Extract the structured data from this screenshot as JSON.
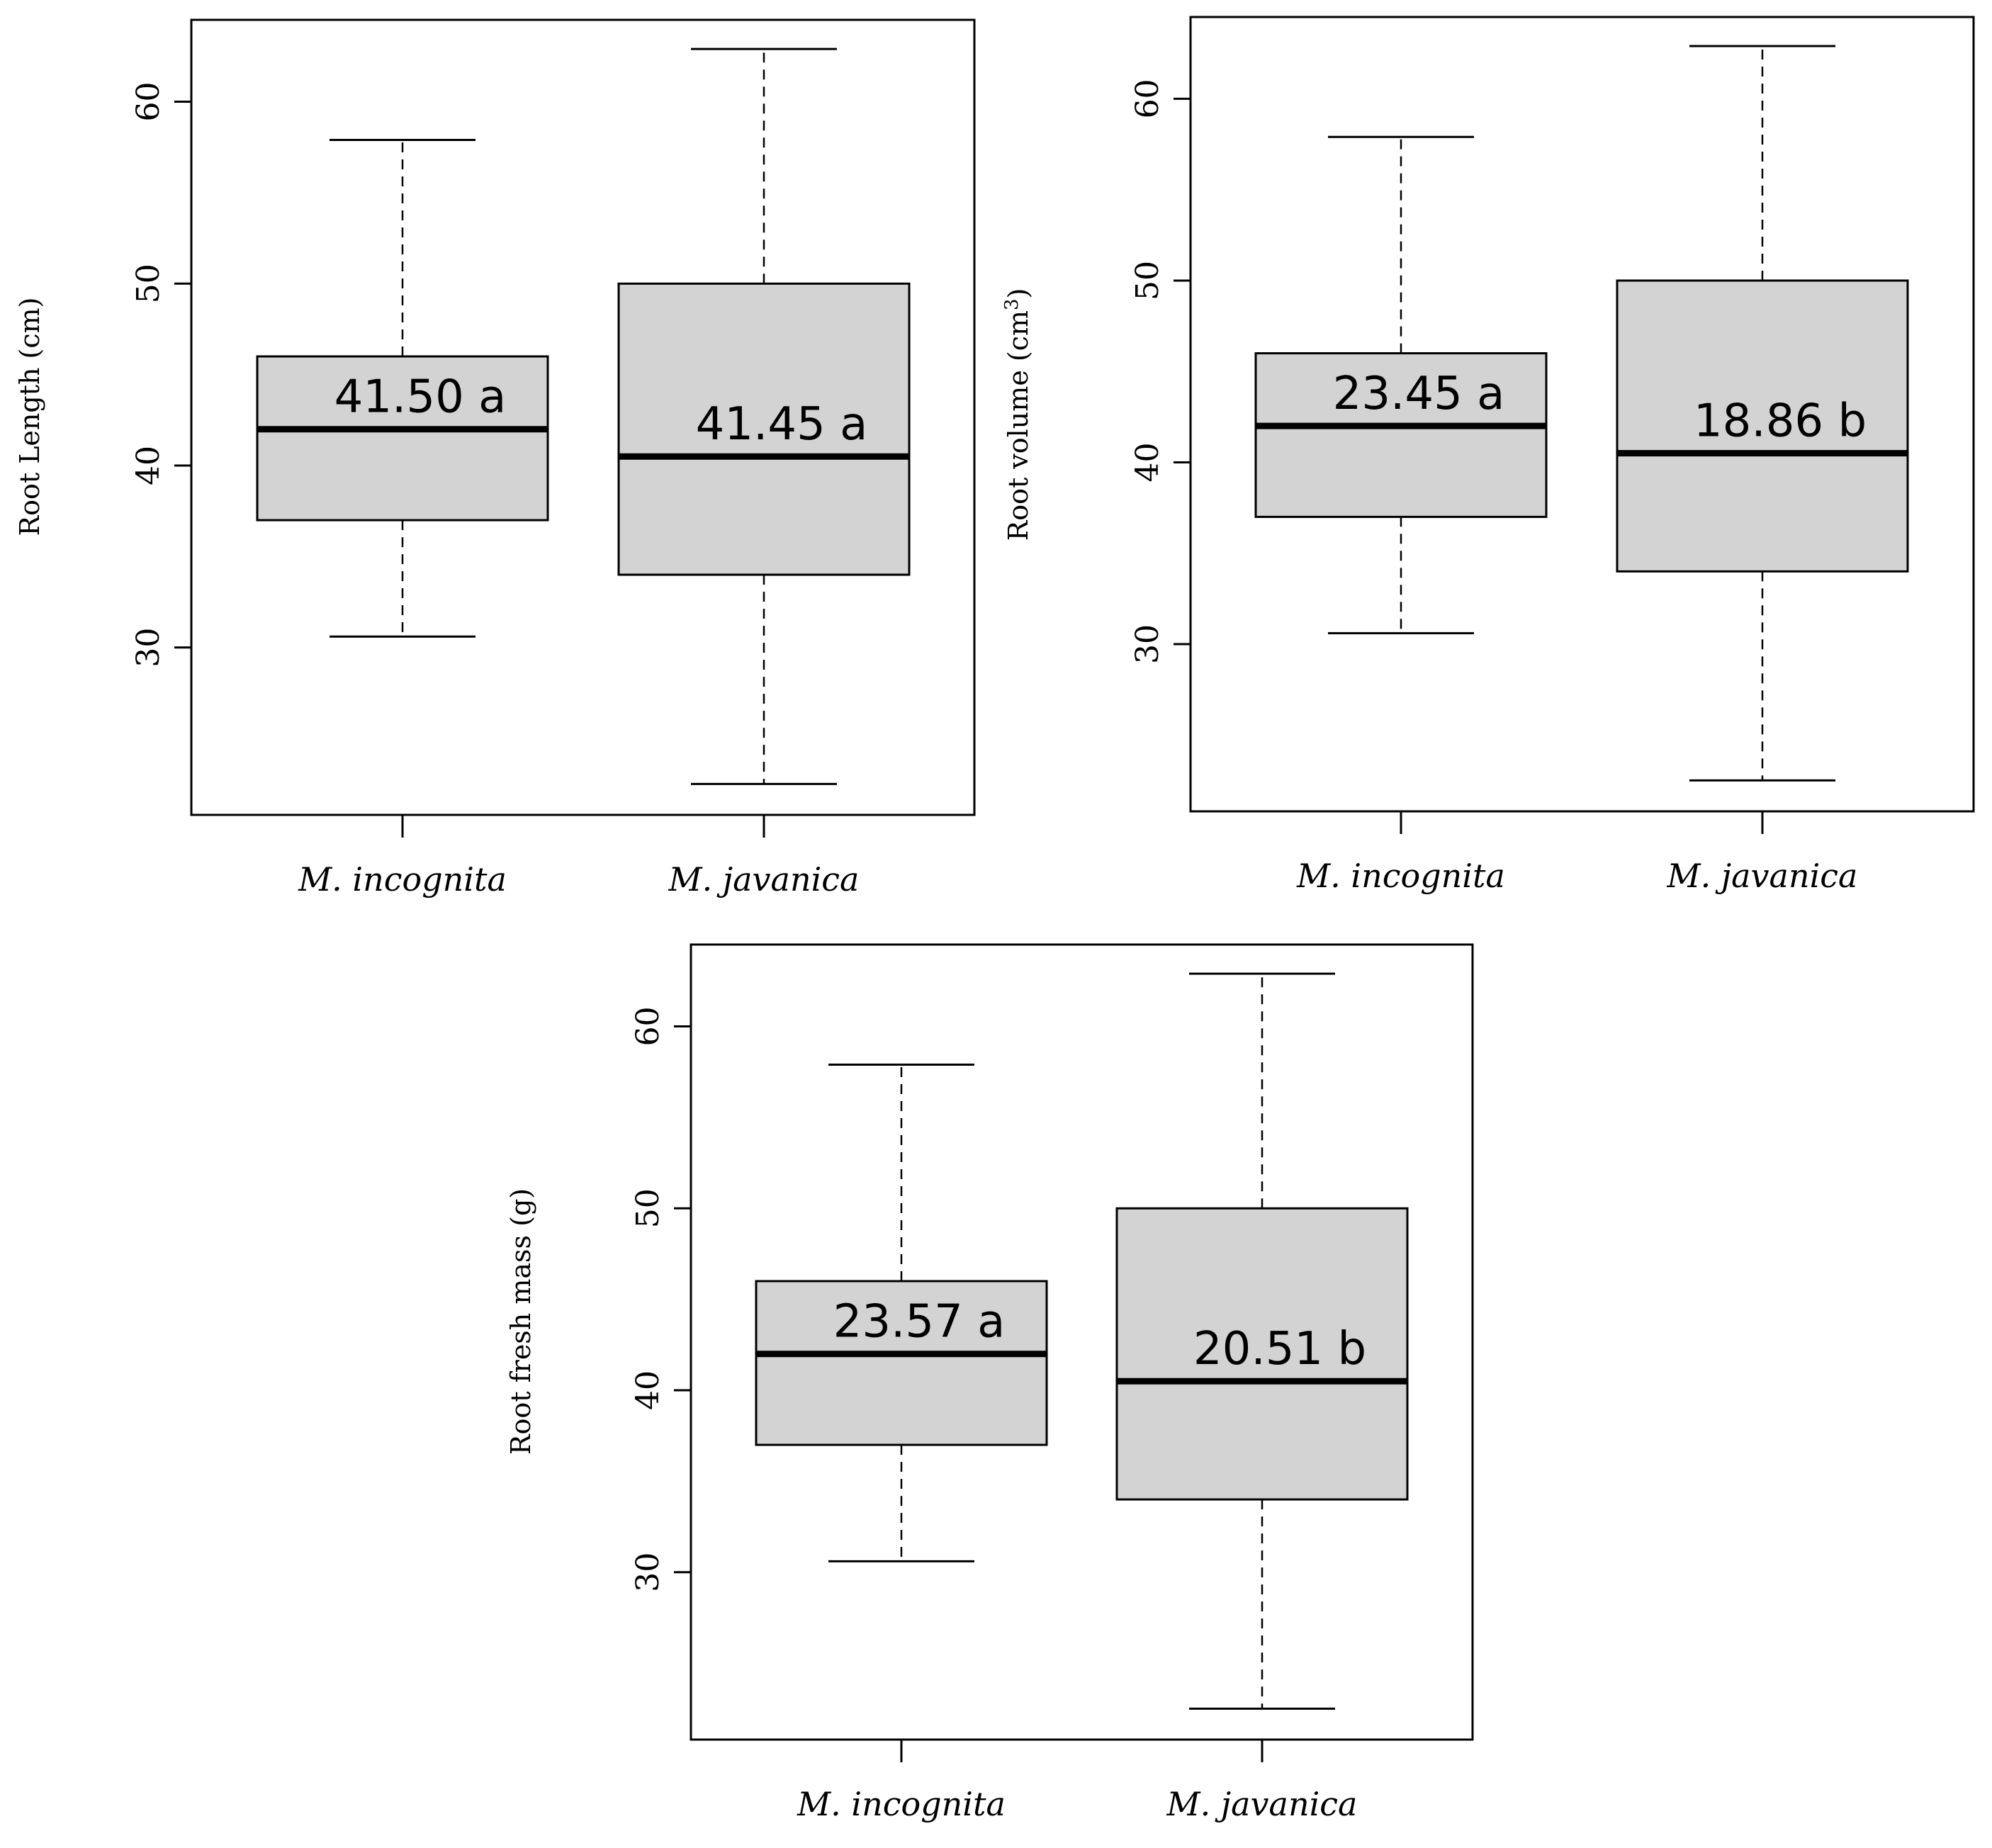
{
  "chart_data": [
    {
      "type": "boxplot",
      "ylabel": "Root Length (cm)",
      "ylabel_sup": "",
      "ylabel_tail": "",
      "categories": [
        "M. incognita",
        "M. javanica"
      ],
      "yticks": [
        "30",
        "40",
        "50",
        "60"
      ],
      "ylim": [
        20.8,
        64.5
      ],
      "boxes": [
        {
          "name": "M. incognita",
          "whisker_low": 30.6,
          "q1": 37.0,
          "median": 42.0,
          "q3": 46.0,
          "whisker_high": 57.9,
          "annotation": "41.50 a"
        },
        {
          "name": "M. javanica",
          "whisker_low": 22.5,
          "q1": 34.0,
          "median": 40.5,
          "q3": 50.0,
          "whisker_high": 62.9,
          "annotation": "41.45 a"
        }
      ]
    },
    {
      "type": "boxplot",
      "ylabel": "Root volume  (cm",
      "ylabel_sup": "3",
      "ylabel_tail": ")",
      "categories": [
        "M. incognita",
        "M. javanica"
      ],
      "yticks": [
        "30",
        "40",
        "50",
        "60"
      ],
      "ylim": [
        20.8,
        64.5
      ],
      "boxes": [
        {
          "name": "M. incognita",
          "whisker_low": 30.6,
          "q1": 37.0,
          "median": 42.0,
          "q3": 46.0,
          "whisker_high": 57.9,
          "annotation": "23.45 a"
        },
        {
          "name": "M. javanica",
          "whisker_low": 22.5,
          "q1": 34.0,
          "median": 40.5,
          "q3": 50.0,
          "whisker_high": 62.9,
          "annotation": "18.86 b"
        }
      ]
    },
    {
      "type": "boxplot",
      "ylabel": "Root fresh mass (g)",
      "ylabel_sup": "",
      "ylabel_tail": "",
      "categories": [
        "M. incognita",
        "M. javanica"
      ],
      "yticks": [
        "30",
        "40",
        "50",
        "60"
      ],
      "ylim": [
        20.8,
        64.5
      ],
      "boxes": [
        {
          "name": "M. incognita",
          "whisker_low": 30.6,
          "q1": 37.0,
          "median": 42.0,
          "q3": 46.0,
          "whisker_high": 57.9,
          "annotation": "23.57 a"
        },
        {
          "name": "M. javanica",
          "whisker_low": 22.5,
          "q1": 34.0,
          "median": 40.5,
          "q3": 50.0,
          "whisker_high": 62.9,
          "annotation": "20.51 b"
        }
      ]
    }
  ]
}
